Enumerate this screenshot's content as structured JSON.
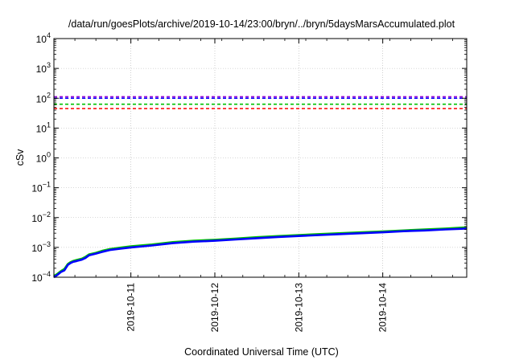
{
  "chart_data": {
    "type": "line",
    "title": "/data/run/goesPlots/archive/2019-10-14/23:00/bryn/../bryn/5daysMarsAccumulated.plot",
    "xlabel": "Coordinated Universal Time (UTC)",
    "ylabel": "cSv",
    "y_scale": "log",
    "ylim": [
      0.0001,
      10000
    ],
    "y_tick_exponents": [
      -4,
      -3,
      -2,
      -1,
      0,
      1,
      2,
      3,
      4
    ],
    "y_tick_base": "10",
    "xlim": [
      "2019-10-10T02:00",
      "2019-10-15T00:00"
    ],
    "x_ticks": [
      "2019-10-11",
      "2019-10-12",
      "2019-10-13",
      "2019-10-14"
    ],
    "grid": true,
    "reference_lines": [
      {
        "color": "#ff0000",
        "value": 45,
        "style": "dashed"
      },
      {
        "color": "#00c000",
        "value": 63,
        "style": "dashed"
      },
      {
        "color": "#0000ff",
        "value": 100,
        "style": "dashed"
      },
      {
        "color": "#9400d3",
        "value": 112,
        "style": "dashed"
      }
    ],
    "series": [
      {
        "color": "#00c000",
        "x": [
          "2019-10-10T02:00",
          "2019-10-10T03:00",
          "2019-10-10T04:00",
          "2019-10-10T05:00",
          "2019-10-10T06:00",
          "2019-10-10T06:45",
          "2019-10-10T07:30",
          "2019-10-10T08:30",
          "2019-10-10T10:00",
          "2019-10-10T11:00",
          "2019-10-10T12:00",
          "2019-10-10T14:00",
          "2019-10-10T16:00",
          "2019-10-10T18:00",
          "2019-10-10T21:00",
          "2019-10-11T00:00",
          "2019-10-11T06:00",
          "2019-10-11T12:00",
          "2019-10-11T18:00",
          "2019-10-12T00:00",
          "2019-10-12T06:00",
          "2019-10-12T12:00",
          "2019-10-12T18:00",
          "2019-10-13T00:00",
          "2019-10-13T06:00",
          "2019-10-13T12:00",
          "2019-10-13T18:00",
          "2019-10-14T00:00",
          "2019-10-14T06:00",
          "2019-10-14T12:00",
          "2019-10-14T18:00",
          "2019-10-15T00:00"
        ],
        "y": [
          0.00011,
          0.00013,
          0.00016,
          0.00019,
          0.00028,
          0.00032,
          0.00035,
          0.00038,
          0.00042,
          0.00048,
          0.00058,
          0.00066,
          0.00078,
          0.00088,
          0.00098,
          0.00108,
          0.00125,
          0.0015,
          0.00168,
          0.0018,
          0.00198,
          0.0022,
          0.0024,
          0.0026,
          0.0028,
          0.003,
          0.0032,
          0.0034,
          0.0037,
          0.004,
          0.0043,
          0.0047
        ]
      },
      {
        "color": "#0000ff",
        "x": [
          "2019-10-10T02:00",
          "2019-10-10T03:00",
          "2019-10-10T04:00",
          "2019-10-10T05:00",
          "2019-10-10T06:00",
          "2019-10-10T06:45",
          "2019-10-10T07:30",
          "2019-10-10T08:30",
          "2019-10-10T10:00",
          "2019-10-10T11:00",
          "2019-10-10T12:00",
          "2019-10-10T14:00",
          "2019-10-10T16:00",
          "2019-10-10T18:00",
          "2019-10-10T21:00",
          "2019-10-11T00:00",
          "2019-10-11T06:00",
          "2019-10-11T12:00",
          "2019-10-11T18:00",
          "2019-10-12T00:00",
          "2019-10-12T06:00",
          "2019-10-12T12:00",
          "2019-10-12T18:00",
          "2019-10-13T00:00",
          "2019-10-13T06:00",
          "2019-10-13T12:00",
          "2019-10-13T18:00",
          "2019-10-14T00:00",
          "2019-10-14T06:00",
          "2019-10-14T12:00",
          "2019-10-14T18:00",
          "2019-10-15T00:00"
        ],
        "y": [
          0.0001,
          0.00012,
          0.00015,
          0.00017,
          0.00026,
          0.0003,
          0.00033,
          0.00035,
          0.00039,
          0.00044,
          0.00054,
          0.00062,
          0.00072,
          0.00082,
          0.00091,
          0.001,
          0.00116,
          0.00139,
          0.00156,
          0.00167,
          0.00184,
          0.00204,
          0.00223,
          0.00241,
          0.0026,
          0.0028,
          0.003,
          0.0032,
          0.0035,
          0.0037,
          0.004,
          0.0043
        ]
      }
    ]
  }
}
